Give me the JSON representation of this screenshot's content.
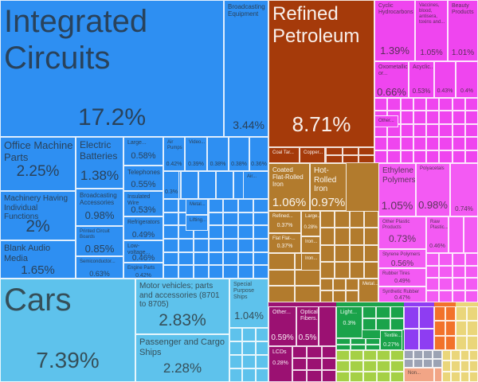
{
  "chart_data": {
    "type": "treemap",
    "colors": {
      "machines": "#2e8ff2",
      "transportation": "#5ec2ec",
      "mineral": "#a53a0a",
      "chemicals": "#ef45ef",
      "metals": "#b27b2d",
      "plastics": "#f35af3",
      "instruments": "#9b1172",
      "textiles": "#1aa34a",
      "misc": "#a5d046",
      "stone": "#8e3df2",
      "foodstuffs": "#f2722a",
      "vegetable": "#ead67a",
      "grey": "#9ca3b4",
      "footwear": "#f2a586"
    },
    "items": [
      {
        "label": "Integrated Circuits",
        "value": "17.2%"
      },
      {
        "label": "Broadcasting Equipment",
        "value": "3.44%"
      },
      {
        "label": "Office Machine Parts",
        "value": "2.25%"
      },
      {
        "label": "Machinery Having Individual Functions",
        "value": "2%"
      },
      {
        "label": "Blank Audio Media",
        "value": "1.65%"
      },
      {
        "label": "Electric Batteries",
        "value": "1.38%"
      },
      {
        "label": "Broadcasting Accessories",
        "value": "0.98%"
      },
      {
        "label": "Printed Circuit Boards",
        "value": "0.85%"
      },
      {
        "label": "Semiconductor...",
        "value": "0.63%"
      },
      {
        "label": "Large...",
        "value": "0.58%"
      },
      {
        "label": "Telephones",
        "value": "0.55%"
      },
      {
        "label": "Insulated Wire",
        "value": "0.53%"
      },
      {
        "label": "Refrigerators",
        "value": "0.49%"
      },
      {
        "label": "Low-voltage...",
        "value": "0.46%"
      },
      {
        "label": "Engine Parts",
        "value": "0.42%"
      },
      {
        "label": "Air Pumps",
        "value": "0.42%"
      },
      {
        "label": "Video...",
        "value": "0.39%"
      },
      {
        "value": "0.38%"
      },
      {
        "value": "0.38%"
      },
      {
        "value": "0.36%"
      },
      {
        "value": "0.3%"
      },
      {
        "label": "Air..."
      },
      {
        "label": "Metal..."
      },
      {
        "label": "Lifting..."
      },
      {
        "label": "Cars",
        "value": "7.39%"
      },
      {
        "label": "Motor vehicles; parts and accessories (8701 to 8705)",
        "value": "2.83%"
      },
      {
        "label": "Passenger and Cargo Ships",
        "value": "2.28%"
      },
      {
        "label": "Special Purpose Ships",
        "value": "1.04%"
      },
      {
        "label": "Refined Petroleum",
        "value": "8.71%"
      },
      {
        "label": "Coal Tar..."
      },
      {
        "label": "Copper..."
      },
      {
        "label": "Cyclic Hydrocarbons",
        "value": "1.39%"
      },
      {
        "label": "Vaccines, blood, antisera, toxins and...",
        "value": "1.05%"
      },
      {
        "label": "Beauty Products",
        "value": "1.01%"
      },
      {
        "label": "Oxometallic or...",
        "value": "0.66%"
      },
      {
        "label": "Acyclic...",
        "value": "0.53%"
      },
      {
        "value": "0.43%"
      },
      {
        "value": "0.4%"
      },
      {
        "label": "Other..."
      },
      {
        "label": "Coated Flat-Rolled Iron",
        "value": "1.06%"
      },
      {
        "label": "Hot-Rolled Iron",
        "value": "0.97%"
      },
      {
        "label": "Refined...",
        "value": "0.37%"
      },
      {
        "label": "Large...",
        "value": "0.28%"
      },
      {
        "label": "Flat Flat-...",
        "value": "0.37%"
      },
      {
        "label": "Iron..."
      },
      {
        "label": "Iron..."
      },
      {
        "label": "Metal..."
      },
      {
        "label": "Ethylene Polymers",
        "value": "1.05%"
      },
      {
        "label": "Polyacetals",
        "value": "0.98%"
      },
      {
        "value": "0.74%"
      },
      {
        "label": "Other Plastic Products",
        "value": "0.73%"
      },
      {
        "label": "Raw Plastic...",
        "value": "0.46%"
      },
      {
        "label": "Styrene Polymers",
        "value": "0.56%"
      },
      {
        "label": "Rubber Tires",
        "value": "0.49%"
      },
      {
        "label": "Synthetic Rubber",
        "value": "0.47%"
      },
      {
        "label": "Other...",
        "value": "0.59%"
      },
      {
        "label": "Optical Fibers...",
        "value": "0.5%"
      },
      {
        "label": "LCDs",
        "value": "0.28%"
      },
      {
        "label": "Light...",
        "value": "0.3%"
      },
      {
        "label": "Textile...",
        "value": "0.27%"
      },
      {
        "label": "Non..."
      }
    ]
  }
}
